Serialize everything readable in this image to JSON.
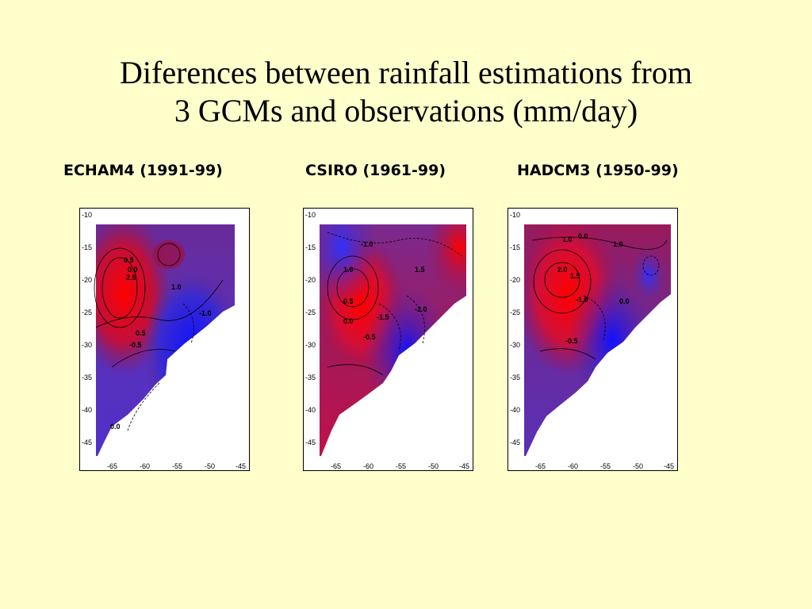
{
  "slide": {
    "title_line1": "Diferences between rainfall estimations from",
    "title_line2": "3 GCMs and observations (mm/day)"
  },
  "panels": [
    {
      "label": "ECHAM4 (1991-99)",
      "contour_labels": [
        "0.5",
        "0.0",
        "2.5",
        "1.0",
        "-1.0",
        "0.5",
        "-0.5",
        "0.0"
      ]
    },
    {
      "label": "CSIRO (1961-99)",
      "contour_labels": [
        "-1.0",
        "1.0",
        "0.5",
        "0.0",
        "-1.5",
        "-2.0",
        "-0.5",
        "1.5"
      ]
    },
    {
      "label": "HADCM3 (1950-99)",
      "contour_labels": [
        "1.0",
        "0.0",
        "2.0",
        "1.5",
        "1.0",
        "-1.0",
        "0.0",
        "-0.5"
      ]
    }
  ],
  "axes": {
    "lat_ticks": [
      "-10",
      "-15",
      "-20",
      "-25",
      "-30",
      "-35",
      "-40",
      "-45"
    ],
    "lon_ticks": [
      "-65",
      "-60",
      "-55",
      "-50",
      "-45"
    ]
  },
  "colors": {
    "background": "#FFFFCC",
    "positive": "#FF0000",
    "neutral": "#8B1A5A",
    "negative": "#2020FF",
    "ocean": "#FFFFFF"
  }
}
